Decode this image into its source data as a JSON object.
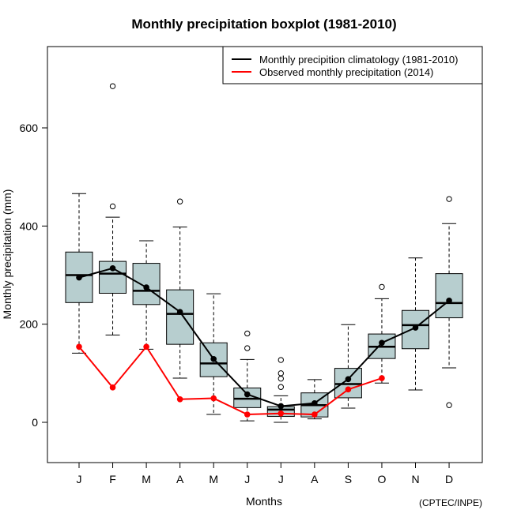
{
  "chart_data": {
    "type": "boxplot",
    "title": "Monthly precipitation boxplot (1981-2010)",
    "xlabel": "Months",
    "ylabel": "Monthly precipitation (mm)",
    "credit": "(CPTEC/INPE)",
    "ylim": [
      -80,
      760
    ],
    "yticks": [
      0,
      200,
      400,
      600
    ],
    "grid": false,
    "legend_position": "top-right",
    "categories": [
      "J",
      "F",
      "M",
      "A",
      "M",
      "J",
      "J",
      "A",
      "S",
      "O",
      "N",
      "D"
    ],
    "box_fill": "#B7CECF",
    "boxes": [
      {
        "month": "J",
        "whisker_low": 141,
        "q1": 244,
        "median": 300,
        "q3": 347,
        "whisker_high": 466,
        "outliers": []
      },
      {
        "month": "F",
        "whisker_low": 178,
        "q1": 263,
        "median": 303,
        "q3": 328,
        "whisker_high": 418,
        "outliers": [
          440,
          685
        ]
      },
      {
        "month": "M",
        "whisker_low": 149,
        "q1": 240,
        "median": 268,
        "q3": 324,
        "whisker_high": 370,
        "outliers": []
      },
      {
        "month": "A",
        "whisker_low": 90,
        "q1": 159,
        "median": 221,
        "q3": 270,
        "whisker_high": 398,
        "outliers": [
          450
        ]
      },
      {
        "month": "M",
        "whisker_low": 16,
        "q1": 93,
        "median": 120,
        "q3": 162,
        "whisker_high": 262,
        "outliers": []
      },
      {
        "month": "J",
        "whisker_low": 3,
        "q1": 30,
        "median": 48,
        "q3": 70,
        "whisker_high": 128,
        "outliers": [
          151,
          181
        ]
      },
      {
        "month": "J",
        "whisker_low": 0,
        "q1": 12,
        "median": 26,
        "q3": 32,
        "whisker_high": 54,
        "outliers": [
          72,
          89,
          100,
          127
        ]
      },
      {
        "month": "A",
        "whisker_low": 7,
        "q1": 11,
        "median": 35,
        "q3": 60,
        "whisker_high": 87,
        "outliers": []
      },
      {
        "month": "S",
        "whisker_low": 29,
        "q1": 50,
        "median": 78,
        "q3": 110,
        "whisker_high": 199,
        "outliers": []
      },
      {
        "month": "O",
        "whisker_low": 80,
        "q1": 130,
        "median": 154,
        "q3": 180,
        "whisker_high": 252,
        "outliers": [
          276
        ]
      },
      {
        "month": "N",
        "whisker_low": 66,
        "q1": 150,
        "median": 198,
        "q3": 228,
        "whisker_high": 335,
        "outliers": []
      },
      {
        "month": "D",
        "whisker_low": 111,
        "q1": 213,
        "median": 243,
        "q3": 303,
        "whisker_high": 405,
        "outliers": [
          35,
          455
        ]
      }
    ],
    "series": [
      {
        "name": "Monthly precipition climatology (1981-2010)",
        "color": "#000000",
        "values": [
          295,
          314,
          275,
          225,
          129,
          57,
          33,
          39,
          88,
          162,
          193,
          248
        ]
      },
      {
        "name": "Observed monthly precipitation (2014)",
        "color": "#FF0000",
        "values": [
          154,
          71,
          154,
          47,
          49,
          16,
          18,
          16,
          67,
          90,
          null,
          null
        ]
      }
    ]
  }
}
